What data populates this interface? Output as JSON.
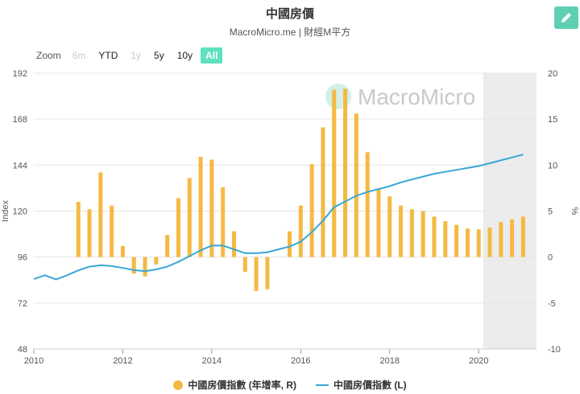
{
  "header": {
    "title": "中國房價",
    "subtitle": "MacroMicro.me | 財經M平方"
  },
  "zoom": {
    "label": "Zoom",
    "buttons": [
      {
        "label": "6m",
        "state": "disabled"
      },
      {
        "label": "YTD",
        "state": "normal"
      },
      {
        "label": "1y",
        "state": "disabled"
      },
      {
        "label": "5y",
        "state": "normal"
      },
      {
        "label": "10y",
        "state": "normal"
      },
      {
        "label": "All",
        "state": "active"
      }
    ]
  },
  "watermark": "MacroMicro",
  "colors": {
    "bar": "#f5b942",
    "line": "#3aa7d6",
    "accent": "#5fe0c0",
    "forecast_band": "#ececec"
  },
  "chart_data": {
    "type": "bar",
    "ylabel": "Index",
    "y2label": "%",
    "ylim": [
      48,
      192
    ],
    "y2lim": [
      -10,
      20
    ],
    "xlim": [
      2010.0,
      2021.3
    ],
    "x_ticks": [
      "2010",
      "2012",
      "2014",
      "2016",
      "2018",
      "2020"
    ],
    "y_ticks": [
      "48",
      "72",
      "96",
      "120",
      "144",
      "168",
      "192"
    ],
    "y2_ticks": [
      "-10",
      "-5",
      "0",
      "5",
      "10",
      "15",
      "20"
    ],
    "shaded_from": 2020.1,
    "series": [
      {
        "name": "中國房價指數 (年增率, R)",
        "axis": "right",
        "type": "bar",
        "points": [
          [
            2011.0,
            6.0
          ],
          [
            2011.25,
            5.2
          ],
          [
            2011.5,
            9.2
          ],
          [
            2011.75,
            5.6
          ],
          [
            2012.0,
            1.2
          ],
          [
            2012.25,
            -1.8
          ],
          [
            2012.5,
            -2.1
          ],
          [
            2012.75,
            -0.8
          ],
          [
            2013.0,
            2.4
          ],
          [
            2013.25,
            6.4
          ],
          [
            2013.5,
            8.6
          ],
          [
            2013.75,
            10.9
          ],
          [
            2014.0,
            10.6
          ],
          [
            2014.25,
            7.6
          ],
          [
            2014.5,
            2.8
          ],
          [
            2014.75,
            -1.6
          ],
          [
            2015.0,
            -3.7
          ],
          [
            2015.25,
            -3.5
          ],
          [
            2015.75,
            2.8
          ],
          [
            2016.0,
            5.6
          ],
          [
            2016.25,
            10.1
          ],
          [
            2016.5,
            14.1
          ],
          [
            2016.75,
            18.2
          ],
          [
            2017.0,
            18.3
          ],
          [
            2017.25,
            15.6
          ],
          [
            2017.5,
            11.4
          ],
          [
            2017.75,
            7.4
          ],
          [
            2018.0,
            6.6
          ],
          [
            2018.25,
            5.6
          ],
          [
            2018.5,
            5.2
          ],
          [
            2018.75,
            5.0
          ],
          [
            2019.0,
            4.4
          ],
          [
            2019.25,
            3.9
          ],
          [
            2019.5,
            3.5
          ],
          [
            2019.75,
            3.1
          ],
          [
            2020.0,
            3.0
          ],
          [
            2020.25,
            3.2
          ],
          [
            2020.5,
            3.8
          ],
          [
            2020.75,
            4.1
          ],
          [
            2021.0,
            4.4
          ]
        ]
      },
      {
        "name": "中國房價指數 (L)",
        "axis": "left",
        "type": "line",
        "points": [
          [
            2010.0,
            84.5
          ],
          [
            2010.25,
            86.5
          ],
          [
            2010.5,
            84.3
          ],
          [
            2010.75,
            86.5
          ],
          [
            2011.0,
            89.0
          ],
          [
            2011.25,
            91.0
          ],
          [
            2011.5,
            91.7
          ],
          [
            2011.75,
            91.3
          ],
          [
            2012.0,
            90.3
          ],
          [
            2012.25,
            89.2
          ],
          [
            2012.5,
            88.6
          ],
          [
            2012.75,
            89.5
          ],
          [
            2013.0,
            91.0
          ],
          [
            2013.25,
            93.5
          ],
          [
            2013.5,
            96.5
          ],
          [
            2013.75,
            99.5
          ],
          [
            2014.0,
            102.0
          ],
          [
            2014.25,
            102.0
          ],
          [
            2014.5,
            100.0
          ],
          [
            2014.75,
            98.0
          ],
          [
            2015.0,
            98.0
          ],
          [
            2015.25,
            98.5
          ],
          [
            2015.5,
            100.0
          ],
          [
            2015.75,
            101.5
          ],
          [
            2016.0,
            104.0
          ],
          [
            2016.25,
            109.0
          ],
          [
            2016.5,
            115.0
          ],
          [
            2016.75,
            122.0
          ],
          [
            2017.0,
            125.0
          ],
          [
            2017.25,
            128.0
          ],
          [
            2017.5,
            130.0
          ],
          [
            2017.75,
            131.5
          ],
          [
            2018.0,
            133.0
          ],
          [
            2018.25,
            135.0
          ],
          [
            2018.5,
            136.5
          ],
          [
            2018.75,
            138.0
          ],
          [
            2019.0,
            139.5
          ],
          [
            2019.25,
            140.5
          ],
          [
            2019.5,
            141.5
          ],
          [
            2019.75,
            142.5
          ],
          [
            2020.0,
            143.5
          ],
          [
            2020.25,
            145.0
          ],
          [
            2020.5,
            146.5
          ],
          [
            2020.75,
            148.0
          ],
          [
            2021.0,
            149.5
          ]
        ]
      }
    ],
    "legend_position": "bottom-center"
  }
}
